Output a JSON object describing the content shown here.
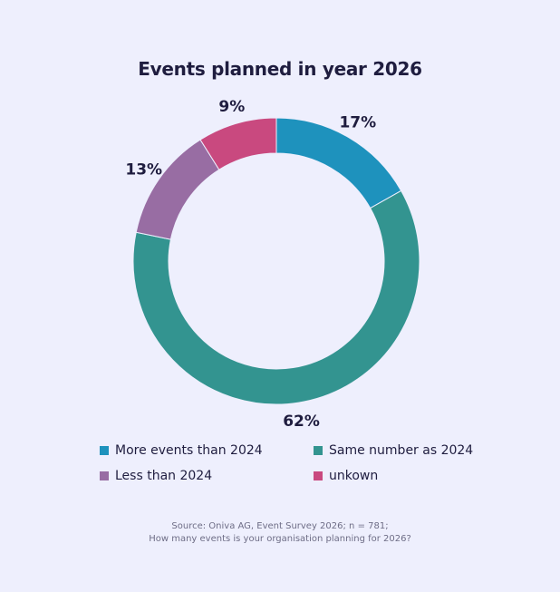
{
  "chart_data": {
    "type": "pie",
    "donut": true,
    "title": "Events planned in year 2026",
    "slices": [
      {
        "label": "More events than 2024",
        "value": 17,
        "display": "17%",
        "color": "#1e92bd"
      },
      {
        "label": "Same number as 2024",
        "value": 62,
        "display": "62%",
        "color": "#339490"
      },
      {
        "label": "Less than 2024",
        "value": 13,
        "display": "13%",
        "color": "#986da3"
      },
      {
        "label": "unkown",
        "value": 9,
        "display": "9%",
        "color": "#c9497f"
      }
    ],
    "legend_position": "bottom"
  },
  "source": {
    "line1": "Source: Oniva AG, Event Survey 2026; n = 781;",
    "line2": "How many events is your organisation planning for 2026?"
  }
}
